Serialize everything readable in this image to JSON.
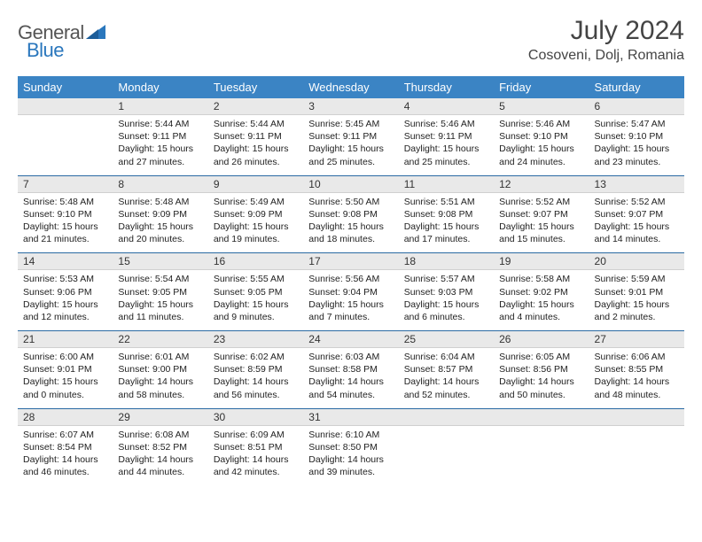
{
  "logo": {
    "text1": "General",
    "text2": "Blue",
    "color_general": "#555555",
    "color_blue": "#2a77bd"
  },
  "title": "July 2024",
  "location": "Cosoveni, Dolj, Romania",
  "header_bg": "#3b84c4",
  "header_fg": "#ffffff",
  "daynum_bg": "#e9e9e9",
  "separator_color": "#2a6aa3",
  "days_of_week": [
    "Sunday",
    "Monday",
    "Tuesday",
    "Wednesday",
    "Thursday",
    "Friday",
    "Saturday"
  ],
  "weeks": [
    [
      null,
      {
        "n": "1",
        "sunrise": "Sunrise: 5:44 AM",
        "sunset": "Sunset: 9:11 PM",
        "day1": "Daylight: 15 hours",
        "day2": "and 27 minutes."
      },
      {
        "n": "2",
        "sunrise": "Sunrise: 5:44 AM",
        "sunset": "Sunset: 9:11 PM",
        "day1": "Daylight: 15 hours",
        "day2": "and 26 minutes."
      },
      {
        "n": "3",
        "sunrise": "Sunrise: 5:45 AM",
        "sunset": "Sunset: 9:11 PM",
        "day1": "Daylight: 15 hours",
        "day2": "and 25 minutes."
      },
      {
        "n": "4",
        "sunrise": "Sunrise: 5:46 AM",
        "sunset": "Sunset: 9:11 PM",
        "day1": "Daylight: 15 hours",
        "day2": "and 25 minutes."
      },
      {
        "n": "5",
        "sunrise": "Sunrise: 5:46 AM",
        "sunset": "Sunset: 9:10 PM",
        "day1": "Daylight: 15 hours",
        "day2": "and 24 minutes."
      },
      {
        "n": "6",
        "sunrise": "Sunrise: 5:47 AM",
        "sunset": "Sunset: 9:10 PM",
        "day1": "Daylight: 15 hours",
        "day2": "and 23 minutes."
      }
    ],
    [
      {
        "n": "7",
        "sunrise": "Sunrise: 5:48 AM",
        "sunset": "Sunset: 9:10 PM",
        "day1": "Daylight: 15 hours",
        "day2": "and 21 minutes."
      },
      {
        "n": "8",
        "sunrise": "Sunrise: 5:48 AM",
        "sunset": "Sunset: 9:09 PM",
        "day1": "Daylight: 15 hours",
        "day2": "and 20 minutes."
      },
      {
        "n": "9",
        "sunrise": "Sunrise: 5:49 AM",
        "sunset": "Sunset: 9:09 PM",
        "day1": "Daylight: 15 hours",
        "day2": "and 19 minutes."
      },
      {
        "n": "10",
        "sunrise": "Sunrise: 5:50 AM",
        "sunset": "Sunset: 9:08 PM",
        "day1": "Daylight: 15 hours",
        "day2": "and 18 minutes."
      },
      {
        "n": "11",
        "sunrise": "Sunrise: 5:51 AM",
        "sunset": "Sunset: 9:08 PM",
        "day1": "Daylight: 15 hours",
        "day2": "and 17 minutes."
      },
      {
        "n": "12",
        "sunrise": "Sunrise: 5:52 AM",
        "sunset": "Sunset: 9:07 PM",
        "day1": "Daylight: 15 hours",
        "day2": "and 15 minutes."
      },
      {
        "n": "13",
        "sunrise": "Sunrise: 5:52 AM",
        "sunset": "Sunset: 9:07 PM",
        "day1": "Daylight: 15 hours",
        "day2": "and 14 minutes."
      }
    ],
    [
      {
        "n": "14",
        "sunrise": "Sunrise: 5:53 AM",
        "sunset": "Sunset: 9:06 PM",
        "day1": "Daylight: 15 hours",
        "day2": "and 12 minutes."
      },
      {
        "n": "15",
        "sunrise": "Sunrise: 5:54 AM",
        "sunset": "Sunset: 9:05 PM",
        "day1": "Daylight: 15 hours",
        "day2": "and 11 minutes."
      },
      {
        "n": "16",
        "sunrise": "Sunrise: 5:55 AM",
        "sunset": "Sunset: 9:05 PM",
        "day1": "Daylight: 15 hours",
        "day2": "and 9 minutes."
      },
      {
        "n": "17",
        "sunrise": "Sunrise: 5:56 AM",
        "sunset": "Sunset: 9:04 PM",
        "day1": "Daylight: 15 hours",
        "day2": "and 7 minutes."
      },
      {
        "n": "18",
        "sunrise": "Sunrise: 5:57 AM",
        "sunset": "Sunset: 9:03 PM",
        "day1": "Daylight: 15 hours",
        "day2": "and 6 minutes."
      },
      {
        "n": "19",
        "sunrise": "Sunrise: 5:58 AM",
        "sunset": "Sunset: 9:02 PM",
        "day1": "Daylight: 15 hours",
        "day2": "and 4 minutes."
      },
      {
        "n": "20",
        "sunrise": "Sunrise: 5:59 AM",
        "sunset": "Sunset: 9:01 PM",
        "day1": "Daylight: 15 hours",
        "day2": "and 2 minutes."
      }
    ],
    [
      {
        "n": "21",
        "sunrise": "Sunrise: 6:00 AM",
        "sunset": "Sunset: 9:01 PM",
        "day1": "Daylight: 15 hours",
        "day2": "and 0 minutes."
      },
      {
        "n": "22",
        "sunrise": "Sunrise: 6:01 AM",
        "sunset": "Sunset: 9:00 PM",
        "day1": "Daylight: 14 hours",
        "day2": "and 58 minutes."
      },
      {
        "n": "23",
        "sunrise": "Sunrise: 6:02 AM",
        "sunset": "Sunset: 8:59 PM",
        "day1": "Daylight: 14 hours",
        "day2": "and 56 minutes."
      },
      {
        "n": "24",
        "sunrise": "Sunrise: 6:03 AM",
        "sunset": "Sunset: 8:58 PM",
        "day1": "Daylight: 14 hours",
        "day2": "and 54 minutes."
      },
      {
        "n": "25",
        "sunrise": "Sunrise: 6:04 AM",
        "sunset": "Sunset: 8:57 PM",
        "day1": "Daylight: 14 hours",
        "day2": "and 52 minutes."
      },
      {
        "n": "26",
        "sunrise": "Sunrise: 6:05 AM",
        "sunset": "Sunset: 8:56 PM",
        "day1": "Daylight: 14 hours",
        "day2": "and 50 minutes."
      },
      {
        "n": "27",
        "sunrise": "Sunrise: 6:06 AM",
        "sunset": "Sunset: 8:55 PM",
        "day1": "Daylight: 14 hours",
        "day2": "and 48 minutes."
      }
    ],
    [
      {
        "n": "28",
        "sunrise": "Sunrise: 6:07 AM",
        "sunset": "Sunset: 8:54 PM",
        "day1": "Daylight: 14 hours",
        "day2": "and 46 minutes."
      },
      {
        "n": "29",
        "sunrise": "Sunrise: 6:08 AM",
        "sunset": "Sunset: 8:52 PM",
        "day1": "Daylight: 14 hours",
        "day2": "and 44 minutes."
      },
      {
        "n": "30",
        "sunrise": "Sunrise: 6:09 AM",
        "sunset": "Sunset: 8:51 PM",
        "day1": "Daylight: 14 hours",
        "day2": "and 42 minutes."
      },
      {
        "n": "31",
        "sunrise": "Sunrise: 6:10 AM",
        "sunset": "Sunset: 8:50 PM",
        "day1": "Daylight: 14 hours",
        "day2": "and 39 minutes."
      },
      null,
      null,
      null
    ]
  ]
}
